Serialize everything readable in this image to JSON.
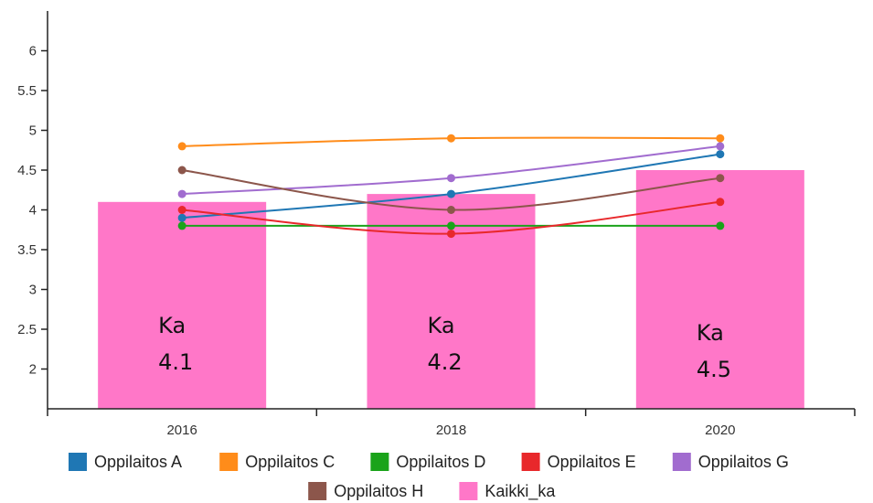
{
  "chart_data": {
    "type": "bar",
    "categories": [
      "2016",
      "2018",
      "2020"
    ],
    "ylim": [
      1.5,
      6.5
    ],
    "y_ticks": [
      "2",
      "2.5",
      "3",
      "3.5",
      "4",
      "4.5",
      "5",
      "5.5",
      "6"
    ],
    "grid": false,
    "legend_placement": "bottom",
    "bar_series": {
      "name": "Kaikki_ka",
      "color": "#ff77c8",
      "values": [
        4.1,
        4.2,
        4.5
      ],
      "labels": [
        {
          "line1": "Ka",
          "line2": "4.1"
        },
        {
          "line1": "Ka",
          "line2": "4.2"
        },
        {
          "line1": "Ka",
          "line2": "4.5"
        }
      ]
    },
    "line_series": [
      {
        "name": "Oppilaitos A",
        "color": "#1f77b4",
        "values": [
          3.9,
          4.2,
          4.7
        ]
      },
      {
        "name": "Oppilaitos C",
        "color": "#ff8c1a",
        "values": [
          4.8,
          4.9,
          4.9
        ]
      },
      {
        "name": "Oppilaitos D",
        "color": "#1aa31a",
        "values": [
          3.8,
          3.8,
          3.8
        ]
      },
      {
        "name": "Oppilaitos E",
        "color": "#e8282b",
        "values": [
          4.0,
          3.7,
          4.1
        ]
      },
      {
        "name": "Oppilaitos G",
        "color": "#a16ccf",
        "values": [
          4.2,
          4.4,
          4.8
        ]
      },
      {
        "name": "Oppilaitos H",
        "color": "#8c564b",
        "values": [
          4.5,
          4.0,
          4.4
        ]
      }
    ]
  }
}
